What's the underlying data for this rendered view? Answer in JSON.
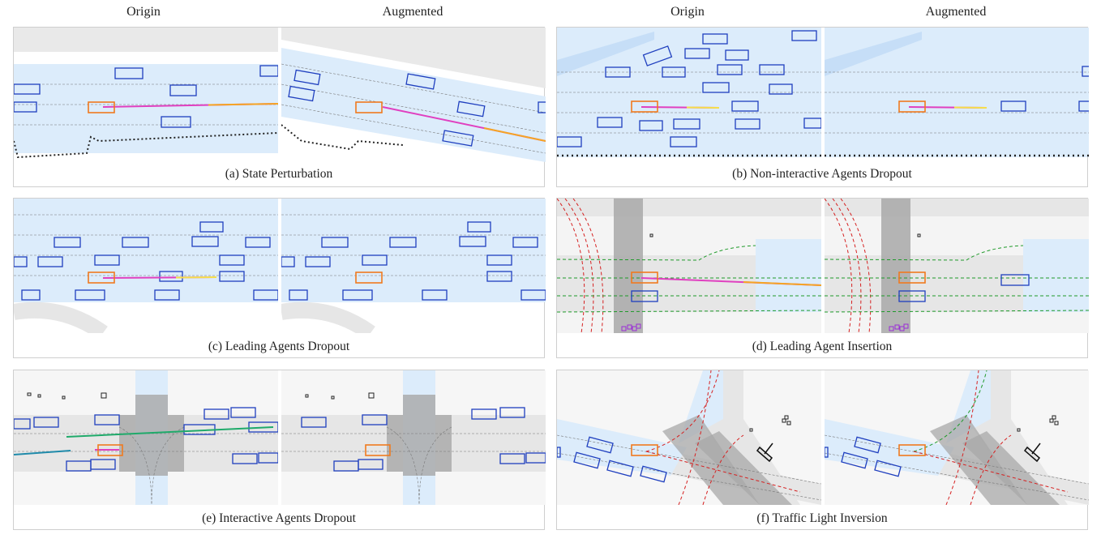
{
  "column_titles": {
    "left_origin": "Origin",
    "left_augmented": "Augmented",
    "right_origin": "Origin",
    "right_augmented": "Augmented"
  },
  "colors": {
    "lane_fill": "#dcecfb",
    "road_gray": "#e6e6e6",
    "agent_box": "#1f3fbf",
    "ego_box": "#f07a1e",
    "trajectory_start": "#e040c0",
    "trajectory_end": "#f5a623",
    "crosswalk": "#a8a8a8",
    "route_green": "#1f9a2a",
    "route_red": "#d62020",
    "pedestrian": "#9a2bd6"
  },
  "panels": [
    {
      "id": "a",
      "caption": "(a) State Perturbation"
    },
    {
      "id": "b",
      "caption": "(b) Non-interactive Agents Dropout"
    },
    {
      "id": "c",
      "caption": "(c) Leading Agents Dropout"
    },
    {
      "id": "d",
      "caption": "(d) Leading Agent Insertion"
    },
    {
      "id": "e",
      "caption": "(e) Interactive Agents Dropout"
    },
    {
      "id": "f",
      "caption": "(f) Traffic Light Inversion"
    }
  ]
}
